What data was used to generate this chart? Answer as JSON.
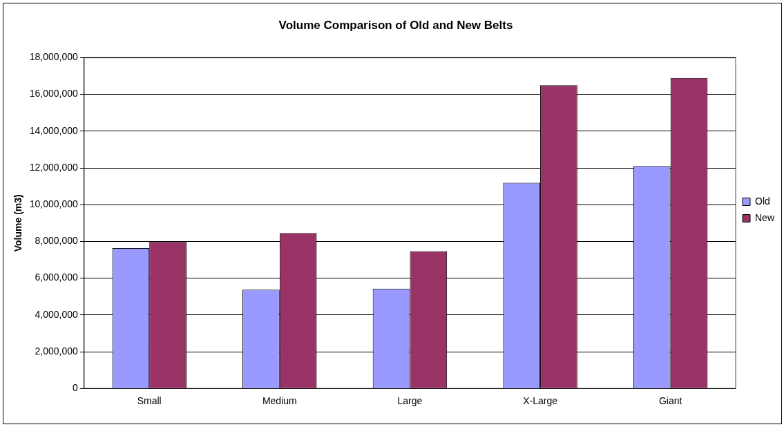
{
  "chart_data": {
    "type": "bar",
    "title": "Volume Comparison of Old and New Belts",
    "ylabel": "Volume (m3)",
    "categories": [
      "Small",
      "Medium",
      "Large",
      "X-Large",
      "Giant"
    ],
    "series": [
      {
        "name": "Old",
        "color": "#9999ff",
        "values": [
          7640000,
          5370000,
          5430000,
          11190000,
          12100000
        ]
      },
      {
        "name": "New",
        "color": "#993366",
        "values": [
          8000000,
          8460000,
          7470000,
          16500000,
          16900000
        ]
      }
    ],
    "ylim": [
      0,
      18000000
    ],
    "yticks": [
      0,
      {
        "value": 2000000,
        "label": "2,000,000"
      },
      {
        "value": 4000000,
        "label": "4,000,000"
      },
      {
        "value": 6000000,
        "label": "6,000,000"
      },
      {
        "value": 8000000,
        "label": "8,000,000"
      },
      {
        "value": 10000000,
        "label": "10,000,000"
      },
      {
        "value": 12000000,
        "label": "12,000,000"
      },
      {
        "value": 14000000,
        "label": "14,000,000"
      },
      {
        "value": 16000000,
        "label": "16,000,000"
      },
      {
        "value": 18000000,
        "label": "18,000,000"
      }
    ],
    "grid": "y",
    "legend": "right"
  }
}
